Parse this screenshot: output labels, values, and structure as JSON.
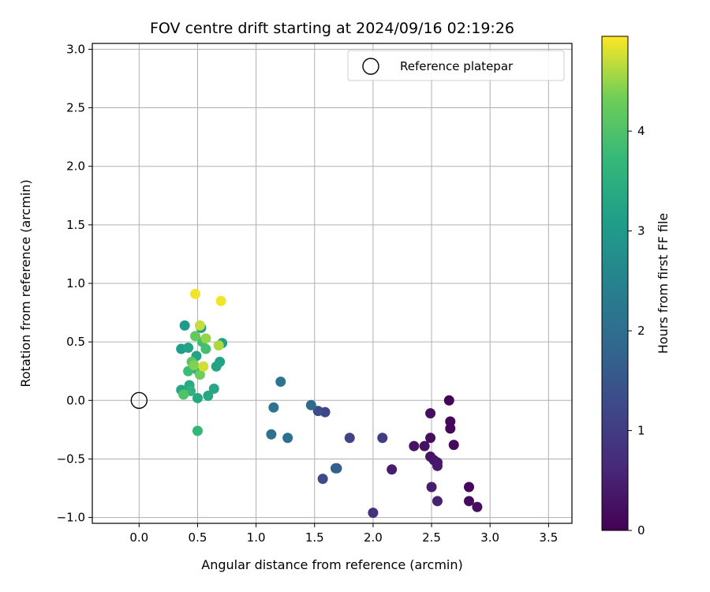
{
  "chart_data": {
    "type": "scatter",
    "title": "FOV centre drift starting at 2024/09/16 02:19:26",
    "xlabel": "Angular distance from reference (arcmin)",
    "ylabel": "Rotation from reference (arcmin)",
    "xlim": [
      -0.4,
      3.7
    ],
    "ylim": [
      -1.05,
      3.05
    ],
    "xticks": [
      "0.0",
      "0.5",
      "1.0",
      "1.5",
      "2.0",
      "2.5",
      "3.0",
      "3.5"
    ],
    "yticks": [
      "−1.0",
      "−0.5",
      "0.0",
      "0.5",
      "1.0",
      "1.5",
      "2.0",
      "2.5",
      "3.0"
    ],
    "grid": true,
    "legend": {
      "placement": "top-right",
      "label": "Reference platepar"
    },
    "reference_point": {
      "x": 0.0,
      "y": 0.0
    },
    "colorbar": {
      "label": "Hours from first FF file",
      "colormap": "viridis",
      "range": [
        0,
        4.95
      ],
      "ticks": [
        "0",
        "1",
        "2",
        "3",
        "4"
      ]
    },
    "points": [
      {
        "x": 2.65,
        "y": 0.0,
        "c": 0.05
      },
      {
        "x": 2.66,
        "y": -0.18,
        "c": 0.1
      },
      {
        "x": 2.66,
        "y": -0.24,
        "c": 0.1
      },
      {
        "x": 2.69,
        "y": -0.38,
        "c": 0.15
      },
      {
        "x": 2.49,
        "y": -0.11,
        "c": 0.2
      },
      {
        "x": 2.49,
        "y": -0.32,
        "c": 0.2
      },
      {
        "x": 2.44,
        "y": -0.39,
        "c": 0.25
      },
      {
        "x": 2.35,
        "y": -0.39,
        "c": 0.3
      },
      {
        "x": 2.49,
        "y": -0.48,
        "c": 0.3
      },
      {
        "x": 2.52,
        "y": -0.51,
        "c": 0.35
      },
      {
        "x": 2.55,
        "y": -0.53,
        "c": 0.35
      },
      {
        "x": 2.55,
        "y": -0.56,
        "c": 0.4
      },
      {
        "x": 2.16,
        "y": -0.59,
        "c": 0.45
      },
      {
        "x": 2.5,
        "y": -0.74,
        "c": 0.45
      },
      {
        "x": 2.55,
        "y": -0.86,
        "c": 0.5
      },
      {
        "x": 2.82,
        "y": -0.74,
        "c": 0.1
      },
      {
        "x": 2.82,
        "y": -0.86,
        "c": 0.15
      },
      {
        "x": 2.89,
        "y": -0.91,
        "c": 0.2
      },
      {
        "x": 2.0,
        "y": -0.96,
        "c": 0.8
      },
      {
        "x": 2.08,
        "y": -0.32,
        "c": 1.0
      },
      {
        "x": 1.8,
        "y": -0.32,
        "c": 1.1
      },
      {
        "x": 1.59,
        "y": -0.1,
        "c": 1.2
      },
      {
        "x": 1.53,
        "y": -0.09,
        "c": 1.3
      },
      {
        "x": 1.57,
        "y": -0.67,
        "c": 1.25
      },
      {
        "x": 1.69,
        "y": -0.58,
        "c": 1.6
      },
      {
        "x": 1.68,
        "y": -0.58,
        "c": 1.7
      },
      {
        "x": 1.47,
        "y": -0.04,
        "c": 1.9
      },
      {
        "x": 1.27,
        "y": -0.32,
        "c": 2.0
      },
      {
        "x": 1.13,
        "y": -0.29,
        "c": 2.1
      },
      {
        "x": 1.15,
        "y": -0.06,
        "c": 2.1
      },
      {
        "x": 1.21,
        "y": 0.16,
        "c": 2.15
      },
      {
        "x": 0.39,
        "y": 0.64,
        "c": 3.0
      },
      {
        "x": 0.53,
        "y": 0.62,
        "c": 3.1
      },
      {
        "x": 0.36,
        "y": 0.44,
        "c": 3.1
      },
      {
        "x": 0.42,
        "y": 0.45,
        "c": 3.2
      },
      {
        "x": 0.71,
        "y": 0.49,
        "c": 3.15
      },
      {
        "x": 0.49,
        "y": 0.38,
        "c": 3.2
      },
      {
        "x": 0.69,
        "y": 0.33,
        "c": 3.2
      },
      {
        "x": 0.66,
        "y": 0.29,
        "c": 3.25
      },
      {
        "x": 0.36,
        "y": 0.09,
        "c": 3.3
      },
      {
        "x": 0.64,
        "y": 0.1,
        "c": 3.3
      },
      {
        "x": 0.59,
        "y": 0.04,
        "c": 3.35
      },
      {
        "x": 0.5,
        "y": 0.02,
        "c": 3.35
      },
      {
        "x": 0.43,
        "y": 0.13,
        "c": 3.4
      },
      {
        "x": 0.5,
        "y": 0.26,
        "c": 3.5
      },
      {
        "x": 0.44,
        "y": 0.08,
        "c": 3.6
      },
      {
        "x": 0.5,
        "y": -0.26,
        "c": 3.7
      },
      {
        "x": 0.42,
        "y": 0.25,
        "c": 3.8
      },
      {
        "x": 0.54,
        "y": 0.5,
        "c": 3.85
      },
      {
        "x": 0.57,
        "y": 0.44,
        "c": 3.9
      },
      {
        "x": 0.38,
        "y": 0.05,
        "c": 4.0
      },
      {
        "x": 0.45,
        "y": 0.33,
        "c": 4.1
      },
      {
        "x": 0.48,
        "y": 0.55,
        "c": 4.2
      },
      {
        "x": 0.52,
        "y": 0.22,
        "c": 4.3
      },
      {
        "x": 0.47,
        "y": 0.3,
        "c": 4.4
      },
      {
        "x": 0.57,
        "y": 0.53,
        "c": 4.5
      },
      {
        "x": 0.68,
        "y": 0.47,
        "c": 4.6
      },
      {
        "x": 0.52,
        "y": 0.64,
        "c": 4.7
      },
      {
        "x": 0.55,
        "y": 0.29,
        "c": 4.75
      },
      {
        "x": 0.48,
        "y": 0.91,
        "c": 4.9
      },
      {
        "x": 0.7,
        "y": 0.85,
        "c": 4.9
      }
    ]
  }
}
